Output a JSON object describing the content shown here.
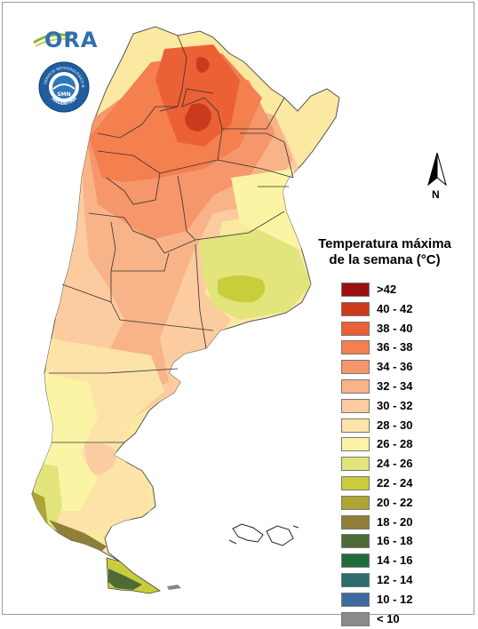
{
  "logos": {
    "ora_text": "ORA",
    "smn_ring_top": "SERVICIO METEOROLÓGICO NACIONAL",
    "smn_ring_bottom": "ARGENTINA",
    "smn_center": "SMN"
  },
  "north_label": "N",
  "legend": {
    "title": "Temperatura máxima\nde la semana (°C)",
    "items": [
      {
        "label": ">42",
        "color": "#9b0f0f"
      },
      {
        "label": "40 - 42",
        "color": "#cc3a1e"
      },
      {
        "label": "38 - 40",
        "color": "#ec6035"
      },
      {
        "label": "36 - 38",
        "color": "#f47f4f"
      },
      {
        "label": "34 - 36",
        "color": "#f5976b"
      },
      {
        "label": "32 - 34",
        "color": "#f8b488"
      },
      {
        "label": "30 - 32",
        "color": "#fccca0"
      },
      {
        "label": "28 - 30",
        "color": "#fde3a8"
      },
      {
        "label": "26 - 28",
        "color": "#fbf4a5"
      },
      {
        "label": "24 - 26",
        "color": "#e2e47c"
      },
      {
        "label": "22 - 24",
        "color": "#c9cd3c"
      },
      {
        "label": "20 - 22",
        "color": "#aca535"
      },
      {
        "label": "18 - 20",
        "color": "#8f7f38"
      },
      {
        "label": "16 - 18",
        "color": "#4d6b37"
      },
      {
        "label": "14 - 16",
        "color": "#1f6b3c"
      },
      {
        "label": "12 - 14",
        "color": "#2a6d6b"
      },
      {
        "label": "10 - 12",
        "color": "#3d6aa0"
      },
      {
        "label": "< 10",
        "color": "#8a8a8a"
      }
    ]
  }
}
